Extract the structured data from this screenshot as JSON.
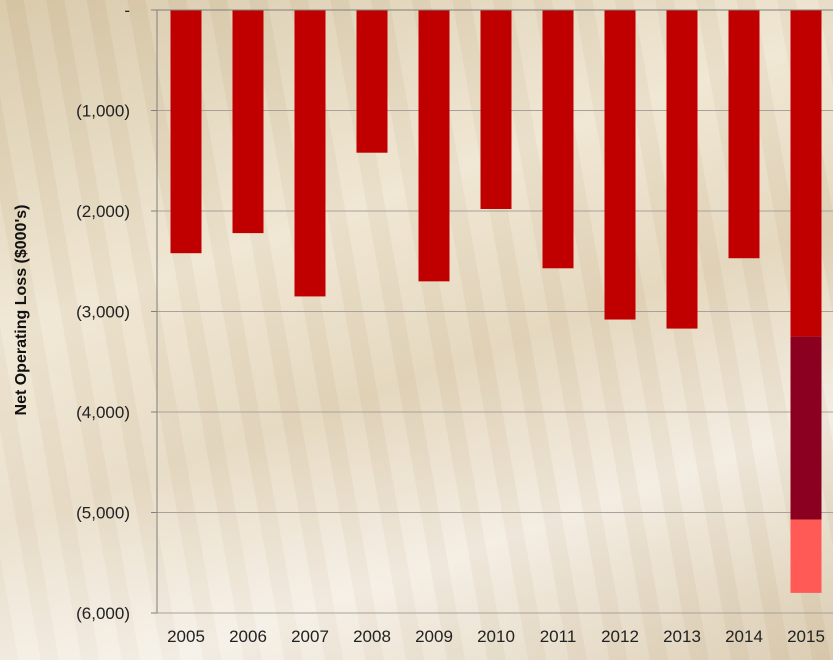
{
  "chart_data": {
    "type": "bar",
    "stacked": true,
    "title": "",
    "xlabel": "",
    "ylabel": "Net Operating Loss ($000's)",
    "categories": [
      "2005",
      "2006",
      "2007",
      "2008",
      "2009",
      "2010",
      "2011",
      "2012",
      "2013",
      "2014",
      "2015"
    ],
    "series": [
      {
        "color": "#c00000",
        "values": [
          -2420,
          -2220,
          -2850,
          -1420,
          -2700,
          -1980,
          -2570,
          -3080,
          -3170,
          -2470,
          -3250
        ]
      },
      {
        "color": "#8b0020",
        "values": [
          0,
          0,
          0,
          0,
          0,
          0,
          0,
          0,
          0,
          0,
          -1820
        ]
      },
      {
        "color": "#ff5a55",
        "values": [
          0,
          0,
          0,
          0,
          0,
          0,
          0,
          0,
          0,
          0,
          -730
        ]
      }
    ],
    "ylim": [
      -6000,
      0
    ],
    "yticks": [
      {
        "value": 0,
        "label": "-"
      },
      {
        "value": -1000,
        "label": "(1,000)"
      },
      {
        "value": -2000,
        "label": "(2,000)"
      },
      {
        "value": -3000,
        "label": "(3,000)"
      },
      {
        "value": -4000,
        "label": "(4,000)"
      },
      {
        "value": -5000,
        "label": "(5,000)"
      },
      {
        "value": -6000,
        "label": "(6,000)"
      }
    ],
    "grid": true,
    "legend": "none"
  }
}
